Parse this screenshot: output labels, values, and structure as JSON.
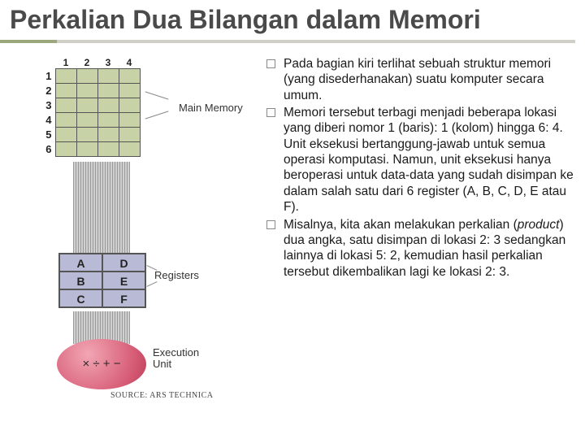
{
  "title": "Perkalian Dua Bilangan dalam Memori",
  "bullets": [
    "Pada bagian kiri terlihat sebuah struktur memori (yang disederhanakan) suatu komputer secara umum.",
    "Memori tersebut terbagi menjadi beberapa lokasi yang diberi nomor 1 (baris): 1 (kolom) hingga 6: 4. Unit eksekusi bertanggung-jawab untuk semua operasi komputasi. Namun, unit eksekusi hanya beroperasi untuk data-data yang sudah disimpan ke dalam salah satu dari 6 register (A, B, C, D, E atau F).",
    "Misalnya, kita akan melakukan perkalian (product) dua angka, satu disimpan di lokasi 2: 3 sedangkan lainnya di lokasi 5: 2, kemudian hasil perkalian tersebut dikembalikan lagi ke lokasi 2: 3."
  ],
  "diagram": {
    "memory": {
      "rows": [
        "1",
        "2",
        "3",
        "4",
        "5",
        "6"
      ],
      "cols": [
        "1",
        "2",
        "3",
        "4"
      ],
      "label": "Main Memory",
      "cell_color": "#c7d3a6"
    },
    "registers": {
      "cells": [
        [
          "A",
          "D"
        ],
        [
          "B",
          "E"
        ],
        [
          "C",
          "F"
        ]
      ],
      "label": "Registers",
      "cell_color": "#b8bad6"
    },
    "execution": {
      "symbol": "× ÷ + −",
      "label": "Execution\nUnit",
      "fill": "#d65a74"
    },
    "source": "SOURCE: ARS TECHNICA"
  },
  "style": {
    "title_color": "#4a4a4a",
    "title_fontsize": 32,
    "body_fontsize": 15.5,
    "accent_bar": "#9aa77d",
    "underline": "#d0cfc6",
    "background": "#ffffff"
  }
}
